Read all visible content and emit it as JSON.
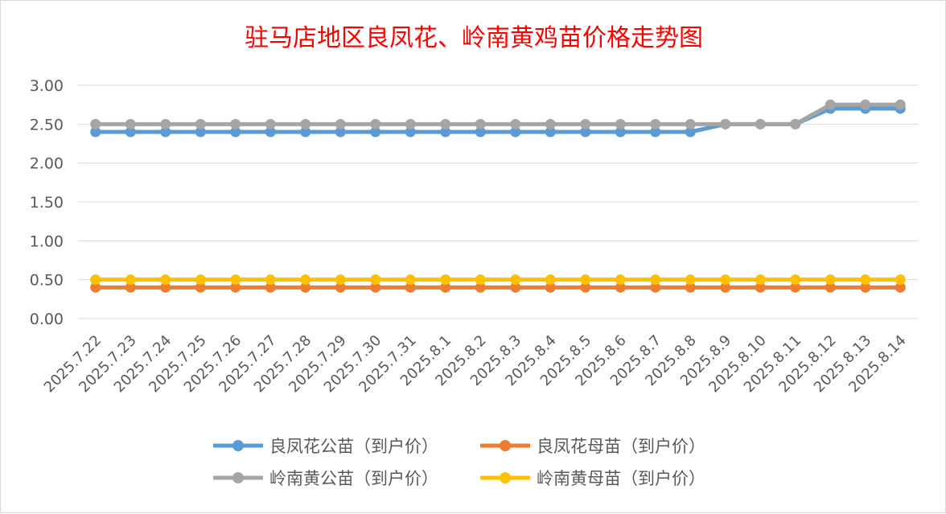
{
  "chart_data": {
    "type": "line",
    "title": "驻马店地区良凤花、岭南黄鸡苗价格走势图",
    "xlabel": "",
    "ylabel": "",
    "ylim": [
      0,
      3
    ],
    "yticks": [
      "0.00",
      "0.50",
      "1.00",
      "1.50",
      "2.00",
      "2.50",
      "3.00"
    ],
    "grid": true,
    "legend_position": "bottom",
    "categories": [
      "2025.7.22",
      "2025.7.23",
      "2025.7.24",
      "2025.7.25",
      "2025.7.26",
      "2025.7.27",
      "2025.7.28",
      "2025.7.29",
      "2025.7.30",
      "2025.7.31",
      "2025.8.1",
      "2025.8.2",
      "2025.8.3",
      "2025.8.4",
      "2025.8.5",
      "2025.8.6",
      "2025.8.7",
      "2025.8.8",
      "2025.8.9",
      "2025.8.10",
      "2025.8.11",
      "2025.8.12",
      "2025.8.13",
      "2025.8.14"
    ],
    "series": [
      {
        "name": "良凤花公苗（到户价）",
        "color": "#5b9bd5",
        "values": [
          2.4,
          2.4,
          2.4,
          2.4,
          2.4,
          2.4,
          2.4,
          2.4,
          2.4,
          2.4,
          2.4,
          2.4,
          2.4,
          2.4,
          2.4,
          2.4,
          2.4,
          2.4,
          2.5,
          2.5,
          2.5,
          2.7,
          2.7,
          2.7
        ]
      },
      {
        "name": "良凤花母苗（到户价）",
        "color": "#ed7d31",
        "values": [
          0.4,
          0.4,
          0.4,
          0.4,
          0.4,
          0.4,
          0.4,
          0.4,
          0.4,
          0.4,
          0.4,
          0.4,
          0.4,
          0.4,
          0.4,
          0.4,
          0.4,
          0.4,
          0.4,
          0.4,
          0.4,
          0.4,
          0.4,
          0.4
        ]
      },
      {
        "name": "岭南黄公苗（到户价）",
        "color": "#a5a5a5",
        "values": [
          2.5,
          2.5,
          2.5,
          2.5,
          2.5,
          2.5,
          2.5,
          2.5,
          2.5,
          2.5,
          2.5,
          2.5,
          2.5,
          2.5,
          2.5,
          2.5,
          2.5,
          2.5,
          2.5,
          2.5,
          2.5,
          2.75,
          2.75,
          2.75
        ]
      },
      {
        "name": "岭南黄母苗（到户价）",
        "color": "#ffc000",
        "values": [
          0.5,
          0.5,
          0.5,
          0.5,
          0.5,
          0.5,
          0.5,
          0.5,
          0.5,
          0.5,
          0.5,
          0.5,
          0.5,
          0.5,
          0.5,
          0.5,
          0.5,
          0.5,
          0.5,
          0.5,
          0.5,
          0.5,
          0.5,
          0.5
        ]
      }
    ]
  }
}
